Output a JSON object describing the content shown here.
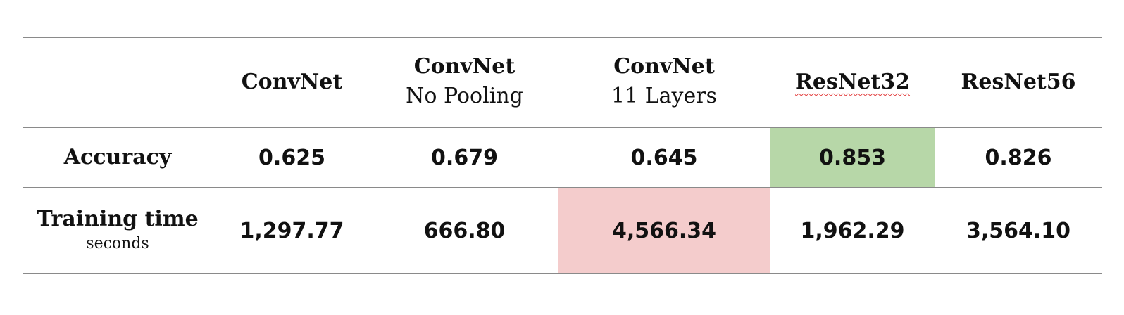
{
  "table": {
    "columns": [
      {
        "title": "ConvNet",
        "subtitle": ""
      },
      {
        "title": "ConvNet",
        "subtitle": "No Pooling"
      },
      {
        "title": "ConvNet",
        "subtitle": "11 Layers"
      },
      {
        "title": "ResNet32",
        "subtitle": ""
      },
      {
        "title": "ResNet56",
        "subtitle": ""
      }
    ],
    "rows": [
      {
        "label": "Accuracy",
        "sublabel": "",
        "values": [
          "0.625",
          "0.679",
          "0.645",
          "0.853",
          "0.826"
        ]
      },
      {
        "label": "Training time",
        "sublabel": "seconds",
        "values": [
          "1,297.77",
          "666.80",
          "4,566.34",
          "1,962.29",
          "3,564.10"
        ]
      }
    ],
    "highlight_colors": {
      "best": "#b7d7a8",
      "worst": "#f4cccc"
    }
  }
}
